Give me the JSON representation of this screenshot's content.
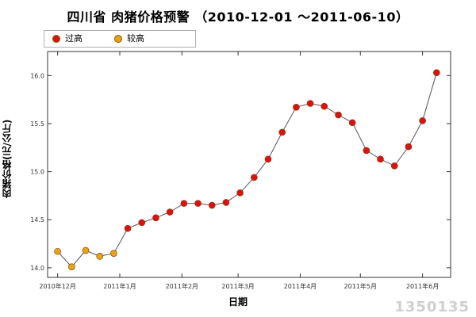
{
  "chart_data": {
    "type": "scatter",
    "title": "四川省 肉猪价格预警 （2010-12-01 ～2011-06-10）",
    "xlabel": "日期",
    "ylabel": "肉猪价格(元/公斤)",
    "ylim": [
      13.9,
      16.25
    ],
    "yticks": [
      14.0,
      14.5,
      15.0,
      15.5,
      16.0
    ],
    "ytick_labels": [
      "14.0",
      "14.5",
      "15.0",
      "15.5",
      "16.0"
    ],
    "xlim": [
      "2010-11-26",
      "2011-06-15"
    ],
    "xticks": [
      "2010-12-01",
      "2011-01-01",
      "2011-02-01",
      "2011-03-01",
      "2011-04-01",
      "2011-05-01",
      "2011-06-01"
    ],
    "xtick_labels": [
      "2010年12月",
      "2011年1月",
      "2011年2月",
      "2011年3月",
      "2011年4月",
      "2011年5月",
      "2011年6月"
    ],
    "grid": false,
    "legend_position": "top-left",
    "series": [
      {
        "name": "过高",
        "color": "#dd1111",
        "category": "too_high"
      },
      {
        "name": "较高",
        "color": "#e8a317",
        "category": "high"
      }
    ],
    "points": [
      {
        "x": "2010-12-01",
        "y": 14.17,
        "series": "较高"
      },
      {
        "x": "2010-12-08",
        "y": 14.01,
        "series": "较高"
      },
      {
        "x": "2010-12-15",
        "y": 14.18,
        "series": "较高"
      },
      {
        "x": "2010-12-22",
        "y": 14.12,
        "series": "较高"
      },
      {
        "x": "2010-12-29",
        "y": 14.15,
        "series": "较高"
      },
      {
        "x": "2011-01-05",
        "y": 14.41,
        "series": "过高"
      },
      {
        "x": "2011-01-12",
        "y": 14.47,
        "series": "过高"
      },
      {
        "x": "2011-01-19",
        "y": 14.52,
        "series": "过高"
      },
      {
        "x": "2011-01-26",
        "y": 14.58,
        "series": "过高"
      },
      {
        "x": "2011-02-02",
        "y": 14.67,
        "series": "过高"
      },
      {
        "x": "2011-02-09",
        "y": 14.67,
        "series": "过高"
      },
      {
        "x": "2011-02-16",
        "y": 14.65,
        "series": "过高"
      },
      {
        "x": "2011-02-23",
        "y": 14.68,
        "series": "过高"
      },
      {
        "x": "2011-03-02",
        "y": 14.78,
        "series": "过高"
      },
      {
        "x": "2011-03-09",
        "y": 14.94,
        "series": "过高"
      },
      {
        "x": "2011-03-16",
        "y": 15.13,
        "series": "过高"
      },
      {
        "x": "2011-03-23",
        "y": 15.41,
        "series": "过高"
      },
      {
        "x": "2011-03-30",
        "y": 15.67,
        "series": "过高"
      },
      {
        "x": "2011-04-06",
        "y": 15.71,
        "series": "过高"
      },
      {
        "x": "2011-04-13",
        "y": 15.68,
        "series": "过高"
      },
      {
        "x": "2011-04-20",
        "y": 15.59,
        "series": "过高"
      },
      {
        "x": "2011-04-27",
        "y": 15.51,
        "series": "过高"
      },
      {
        "x": "2011-05-04",
        "y": 15.22,
        "series": "过高"
      },
      {
        "x": "2011-05-11",
        "y": 15.13,
        "series": "过高"
      },
      {
        "x": "2011-05-18",
        "y": 15.06,
        "series": "过高"
      },
      {
        "x": "2011-05-25",
        "y": 15.26,
        "series": "过高"
      },
      {
        "x": "2011-06-01",
        "y": 15.53,
        "series": "过高"
      },
      {
        "x": "2011-06-08",
        "y": 16.03,
        "series": "过高"
      }
    ]
  },
  "watermark": "1350135"
}
